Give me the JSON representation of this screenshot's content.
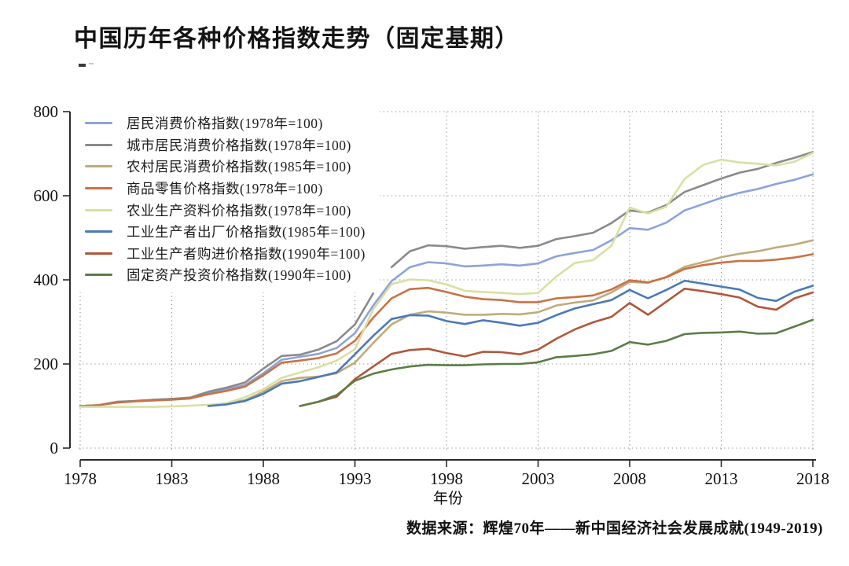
{
  "header": {
    "title": "中国历年各种价格指数走势（固定基期）"
  },
  "chart_data": {
    "type": "line",
    "title": "中国历年各种价格指数走势（固定基期）",
    "xlabel": "年份",
    "ylabel": "",
    "source": "数据来源：辉煌70年——新中国经济社会发展成就(1949-2019)",
    "xlim": [
      1978,
      2018
    ],
    "ylim": [
      0,
      800
    ],
    "x_ticks": [
      1978,
      1983,
      1988,
      1993,
      1998,
      2003,
      2008,
      2013,
      2018
    ],
    "y_ticks": [
      0,
      200,
      400,
      600,
      800
    ],
    "grid": "dotted",
    "legend_position": "upper-left",
    "axis_color": "#2b2b2b",
    "grid_color": "#8f8f8f",
    "series": [
      {
        "label": "居民消费价格指数(1978年=100)",
        "color": "#8ca3d9",
        "segments": [
          {
            "start_year": 1978,
            "values": [
              100,
              102,
              109,
              112,
              115,
              117,
              120,
              131,
              140,
              150,
              178,
              210,
              217,
              224,
              238,
              273,
              339,
              397,
              430,
              442,
              439,
              432,
              434,
              437,
              434,
              439,
              456,
              464,
              471,
              494,
              523,
              519,
              536,
              565,
              580,
              595,
              607,
              616,
              628,
              638,
              651
            ]
          }
        ]
      },
      {
        "label": "城市居民消费价格指数(1978年=100)",
        "color": "#8a8a8a",
        "segments": [
          {
            "start_year": 1978,
            "values": [
              100,
              102,
              110,
              112,
              115,
              117,
              120,
              134,
              144,
              156,
              189,
              219,
              222,
              234,
              254,
              294,
              368
            ]
          },
          {
            "start_year": 1995,
            "values": [
              430,
              468,
              482,
              480,
              474,
              478,
              481,
              476,
              481,
              497,
              504,
              512,
              535,
              565,
              560,
              578,
              609,
              625,
              641,
              655,
              664,
              678,
              690,
              704
            ]
          }
        ]
      },
      {
        "label": "农村居民消费价格指数(1985年=100)",
        "color": "#c0ab7c",
        "segments": [
          {
            "start_year": 1985,
            "values": [
              100,
              106,
              114,
              134,
              159,
              167,
              170,
              178,
              203,
              250,
              294,
              317,
              325,
              322,
              317,
              317,
              319,
              318,
              323,
              339,
              346,
              351,
              370,
              395,
              393,
              407,
              431,
              442,
              454,
              462,
              468,
              477,
              484,
              494
            ]
          }
        ]
      },
      {
        "label": "商品零售价格指数(1978年=100)",
        "color": "#c97245",
        "segments": [
          {
            "start_year": 1978,
            "values": [
              100,
              102,
              108,
              111,
              113,
              115,
              118,
              128,
              136,
              146,
              173,
              203,
              208,
              214,
              225,
              255,
              310,
              356,
              378,
              381,
              371,
              360,
              354,
              352,
              347,
              347,
              356,
              359,
              363,
              377,
              399,
              394,
              406,
              426,
              435,
              441,
              445,
              445,
              448,
              453,
              461
            ]
          }
        ]
      },
      {
        "label": "农业生产资料价格指数(1978年=100)",
        "color": "#d9dfa3",
        "segments": [
          {
            "start_year": 1978,
            "values": [
              98,
              98,
              98,
              98,
              98,
              99,
              101,
              103,
              107,
              121,
              140,
              167,
              180,
              192,
              208,
              235,
              330,
              390,
              401,
              399,
              389,
              374,
              371,
              369,
              366,
              369,
              408,
              440,
              447,
              481,
              572,
              558,
              574,
              640,
              673,
              686,
              679,
              676,
              672,
              681,
              702
            ]
          }
        ]
      },
      {
        "label": "工业生产者出厂价格指数(1985年=100)",
        "color": "#4a79b8",
        "segments": [
          {
            "start_year": 1985,
            "values": [
              100,
              104,
              112,
              129,
              153,
              159,
              169,
              180,
              223,
              267,
              307,
              316,
              315,
              302,
              295,
              304,
              298,
              291,
              298,
              316,
              332,
              342,
              352,
              376,
              356,
              376,
              398,
              391,
              384,
              377,
              357,
              350,
              372,
              386
            ]
          }
        ]
      },
      {
        "label": "工业生产者购进价格指数(1990年=100)",
        "color": "#b0573a",
        "segments": [
          {
            "start_year": 1990,
            "values": [
              100,
              110,
              122,
              164,
              194,
              224,
              233,
              236,
              226,
              218,
              229,
              228,
              223,
              234,
              260,
              282,
              299,
              312,
              345,
              317,
              348,
              379,
              373,
              366,
              358,
              336,
              329,
              356,
              370
            ]
          }
        ]
      },
      {
        "label": "固定资产投资价格指数(1990年=100)",
        "color": "#5c7d47",
        "segments": [
          {
            "start_year": 1990,
            "values": [
              100,
              110,
              126,
              160,
              177,
              187,
              194,
              198,
              197,
              197,
              199,
              200,
              200,
              204,
              216,
              219,
              223,
              231,
              252,
              246,
              255,
              271,
              274,
              275,
              277,
              272,
              273,
              289,
              305
            ]
          }
        ]
      }
    ]
  }
}
